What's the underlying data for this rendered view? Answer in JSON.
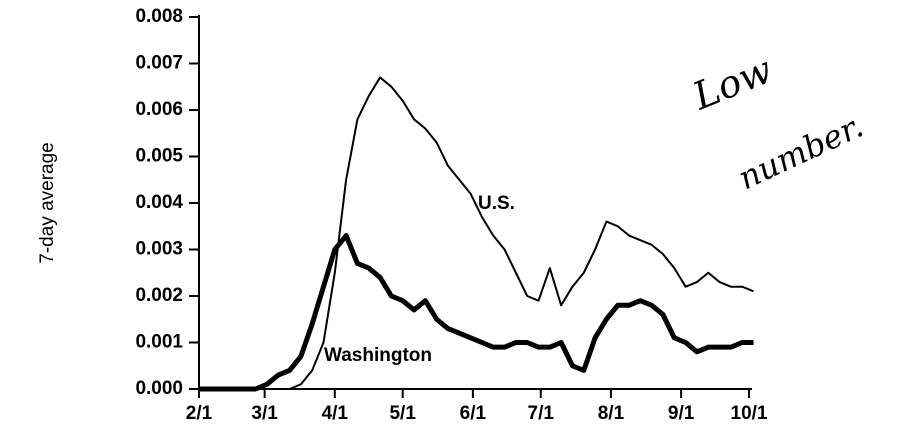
{
  "chart_data": {
    "type": "line",
    "ylabel": "7-day average",
    "annotations": [
      "U.S.",
      "Washington",
      "Low",
      "number."
    ],
    "x": [
      0,
      5,
      10,
      15,
      20,
      25,
      30,
      35,
      40,
      45,
      50,
      55,
      60,
      65,
      70,
      75,
      80,
      85,
      90,
      95,
      100,
      105,
      110,
      115,
      120,
      125,
      130,
      135,
      140,
      145,
      150,
      155,
      160,
      165,
      170,
      175,
      180,
      185,
      190,
      195,
      200,
      205,
      210,
      215,
      220,
      225,
      230,
      235,
      240,
      245
    ],
    "xlim": [
      0,
      243
    ],
    "xticks": [
      {
        "value": 0,
        "label": "2/1"
      },
      {
        "value": 29,
        "label": "3/1"
      },
      {
        "value": 60,
        "label": "4/1"
      },
      {
        "value": 90,
        "label": "5/1"
      },
      {
        "value": 121,
        "label": "6/1"
      },
      {
        "value": 151,
        "label": "7/1"
      },
      {
        "value": 182,
        "label": "8/1"
      },
      {
        "value": 213,
        "label": "9/1"
      },
      {
        "value": 243,
        "label": "10/1"
      }
    ],
    "ylim": [
      0,
      0.008
    ],
    "yticks": [
      {
        "value": 0,
        "label": "0.000"
      },
      {
        "value": 0.001,
        "label": "0.001"
      },
      {
        "value": 0.002,
        "label": "0.002"
      },
      {
        "value": 0.003,
        "label": "0.003"
      },
      {
        "value": 0.004,
        "label": "0.004"
      },
      {
        "value": 0.005,
        "label": "0.005"
      },
      {
        "value": 0.006,
        "label": "0.006"
      },
      {
        "value": 0.007,
        "label": "0.007"
      },
      {
        "value": 0.008,
        "label": "0.008"
      }
    ],
    "series": [
      {
        "name": "U.S.",
        "color": "#000000",
        "width": 2,
        "values": [
          0,
          0,
          0,
          0,
          0,
          0,
          0,
          0,
          0,
          0.0001,
          0.0004,
          0.001,
          0.0025,
          0.0045,
          0.0058,
          0.0063,
          0.0067,
          0.0065,
          0.0062,
          0.0058,
          0.0056,
          0.0053,
          0.0048,
          0.0045,
          0.0042,
          0.0037,
          0.0033,
          0.003,
          0.0025,
          0.002,
          0.0019,
          0.0026,
          0.0018,
          0.0022,
          0.0025,
          0.003,
          0.0036,
          0.0035,
          0.0033,
          0.0032,
          0.0031,
          0.0029,
          0.0026,
          0.0022,
          0.0023,
          0.0025,
          0.0023,
          0.0022,
          0.0022,
          0.0021
        ]
      },
      {
        "name": "Washington",
        "color": "#000000",
        "width": 5,
        "values": [
          0,
          0,
          0,
          0,
          0,
          0,
          0.0001,
          0.0003,
          0.0004,
          0.0007,
          0.0014,
          0.0022,
          0.003,
          0.0033,
          0.0027,
          0.0026,
          0.0024,
          0.002,
          0.0019,
          0.0017,
          0.0019,
          0.0015,
          0.0013,
          0.0012,
          0.0011,
          0.001,
          0.0009,
          0.0009,
          0.001,
          0.001,
          0.0009,
          0.0009,
          0.001,
          0.0005,
          0.0004,
          0.0011,
          0.0015,
          0.0018,
          0.0018,
          0.0019,
          0.0018,
          0.0016,
          0.0011,
          0.001,
          0.0008,
          0.0009,
          0.0009,
          0.0009,
          0.001,
          0.001
        ]
      }
    ]
  }
}
